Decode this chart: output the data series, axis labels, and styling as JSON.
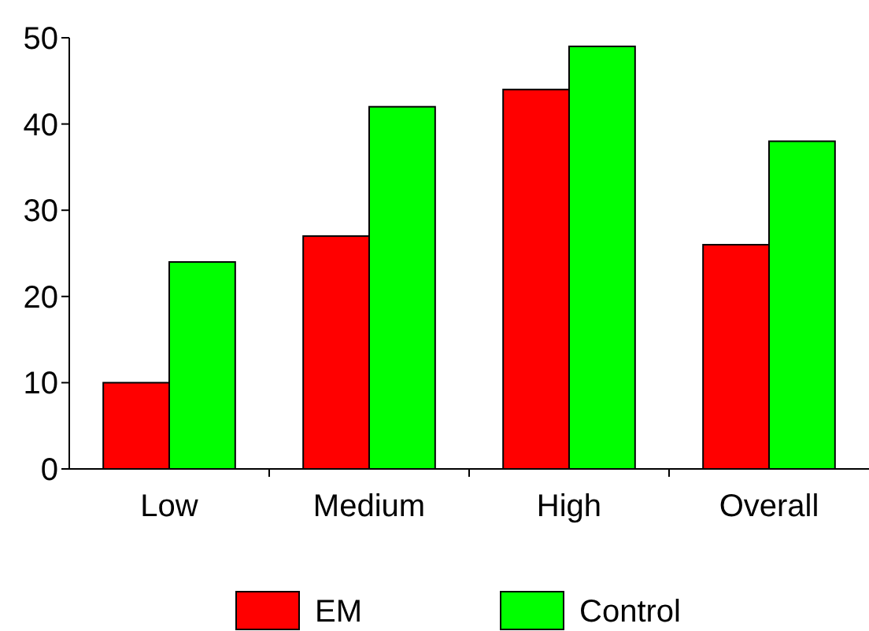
{
  "chart_data": {
    "type": "bar",
    "categories": [
      "Low",
      "Medium",
      "High",
      "Overall"
    ],
    "series": [
      {
        "name": "EM",
        "color": "#ff0000",
        "values": [
          10,
          27,
          44,
          26
        ]
      },
      {
        "name": "Control",
        "color": "#00ff00",
        "values": [
          24,
          42,
          49,
          38
        ]
      }
    ],
    "ylim": [
      0,
      50
    ],
    "yticks": [
      0,
      10,
      20,
      30,
      40,
      50
    ],
    "grid": false,
    "legend": "bottom"
  }
}
